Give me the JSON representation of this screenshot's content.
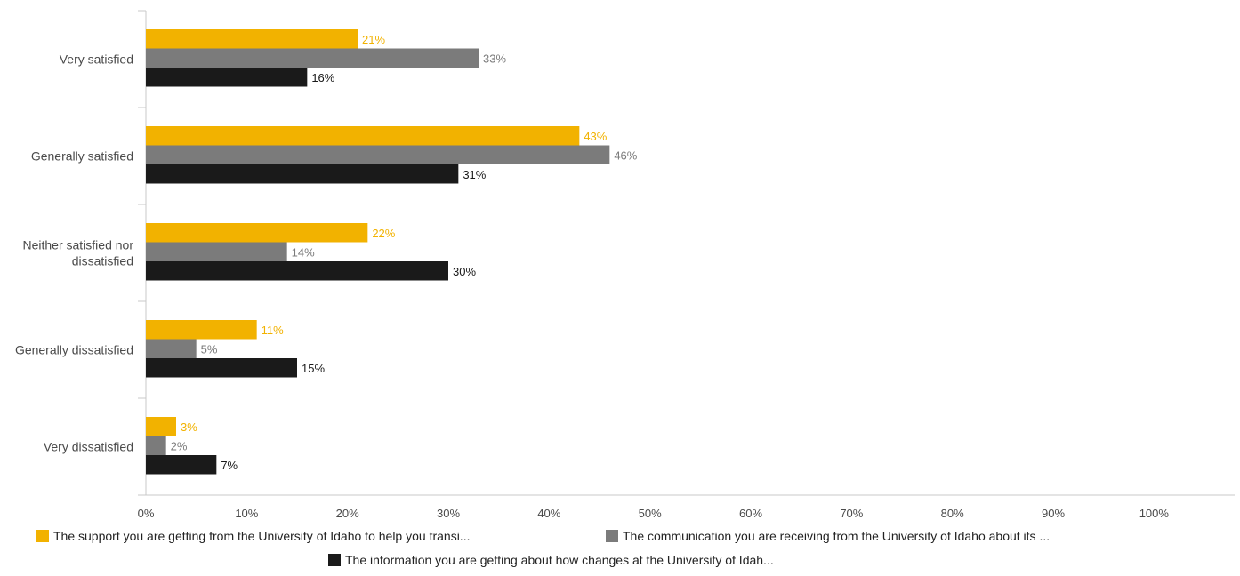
{
  "chart_data": {
    "type": "bar",
    "orientation": "horizontal",
    "categories": [
      "Very satisfied",
      "Generally satisfied",
      "Neither satisfied nor dissatisfied",
      "Generally dissatisfied",
      "Very dissatisfied"
    ],
    "series": [
      {
        "name": "The support you are getting from the University of Idaho to help you transi...",
        "color": "#f2b200",
        "values": [
          21,
          43,
          22,
          11,
          3
        ],
        "labels": [
          "21%",
          "43%",
          "22%",
          "11%",
          "3%"
        ]
      },
      {
        "name": "The communication you are receiving from the University of Idaho about its ...",
        "color": "#7b7b7b",
        "values": [
          33,
          46,
          14,
          5,
          2
        ],
        "labels": [
          "33%",
          "46%",
          "14%",
          "5%",
          "2%"
        ]
      },
      {
        "name": "The information you are getting about how changes at the University of Idah...",
        "color": "#1a1a1a",
        "values": [
          16,
          31,
          30,
          15,
          7
        ],
        "labels": [
          "16%",
          "31%",
          "30%",
          "15%",
          "7%"
        ]
      }
    ],
    "label_colors": [
      "#f2b200",
      "#7b7b7b",
      "#1a1a1a"
    ],
    "xlim": [
      0,
      108
    ],
    "xticks": [
      "0%",
      "10%",
      "20%",
      "30%",
      "40%",
      "50%",
      "60%",
      "70%",
      "80%",
      "90%",
      "100%"
    ],
    "xtick_values": [
      0,
      10,
      20,
      30,
      40,
      50,
      60,
      70,
      80,
      90,
      100
    ],
    "grid": false,
    "legend_position": "bottom",
    "title": "",
    "xlabel": "",
    "ylabel": ""
  }
}
